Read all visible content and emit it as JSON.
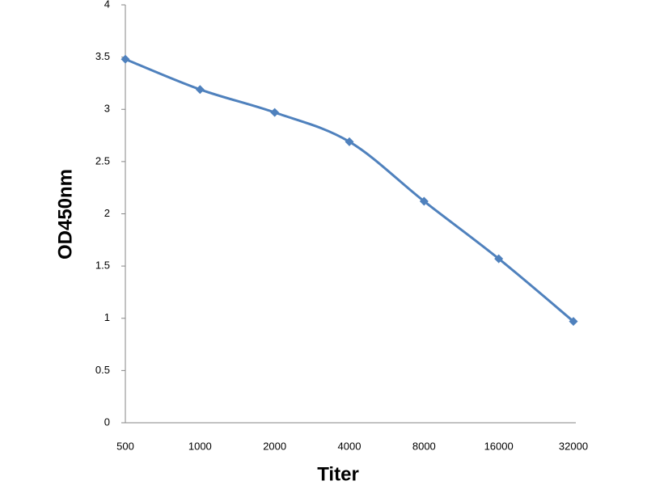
{
  "chart_data": {
    "type": "line",
    "x_label": "Titer",
    "y_label": "OD450nm",
    "categories": [
      "500",
      "1000",
      "2000",
      "4000",
      "8000",
      "16000",
      "32000"
    ],
    "values": [
      3.48,
      3.19,
      2.97,
      2.69,
      2.12,
      1.57,
      0.97
    ],
    "color": "#4f81bd",
    "ylim": [
      0,
      4
    ],
    "yticks": [
      0,
      0.5,
      1,
      1.5,
      2,
      2.5,
      3,
      3.5,
      4
    ],
    "smooth": true
  }
}
